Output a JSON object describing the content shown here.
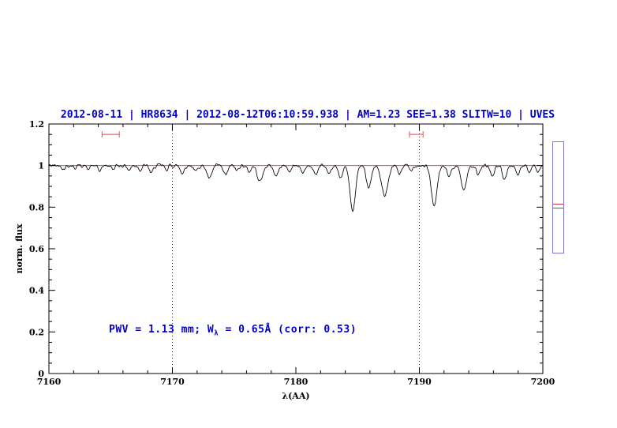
{
  "header": {
    "title": "2012-08-11 | HR8634 | 2012-08-12T06:10:59.938 | AM=1.23  SEE=1.38  SLITW=10 | UVES",
    "color": "#0000cc"
  },
  "annotation": {
    "prefix": "PWV  =  1.13  mm;  W",
    "sub": "λ",
    "suffix": "  =  0.65Å  (corr: 0.53)",
    "color": "#0000cc"
  },
  "slit_panel": {
    "border_color": "#7777cc",
    "marker_color": "#cc3333"
  },
  "chart_data": {
    "type": "line",
    "title": "",
    "xlabel": "λ(AA)",
    "ylabel": "norm. flux",
    "xlim": [
      7160,
      7200
    ],
    "ylim": [
      0,
      1.2
    ],
    "x_major_ticks": [
      7160,
      7170,
      7180,
      7190,
      7200
    ],
    "x_minor_step": 2,
    "y_major_ticks": [
      0,
      0.2,
      0.4,
      0.6,
      0.8,
      1,
      1.2
    ],
    "y_minor_step": 0.05,
    "grid": false,
    "legend": "none",
    "line_color": "#000000",
    "continuum_level": 1.0,
    "continuum_color": "#cc3333",
    "noise_sigma": 0.006,
    "samples": 900,
    "vlines": {
      "x": [
        7170,
        7190
      ],
      "style": "dotted",
      "color": "#333333"
    },
    "markers": [
      {
        "x1": 7164.3,
        "x2": 7165.7,
        "y": 1.15,
        "color": "#d95555"
      },
      {
        "x1": 7189.2,
        "x2": 7190.3,
        "y": 1.15,
        "color": "#d95555"
      }
    ],
    "absorption_lines": [
      [
        7161.2,
        0.015,
        0.12
      ],
      [
        7162.1,
        0.012,
        0.1
      ],
      [
        7163.2,
        0.02,
        0.12
      ],
      [
        7164.1,
        0.025,
        0.15
      ],
      [
        7165.2,
        0.018,
        0.12
      ],
      [
        7166.5,
        0.022,
        0.13
      ],
      [
        7167.4,
        0.02,
        0.12
      ],
      [
        7168.3,
        0.035,
        0.16
      ],
      [
        7169.5,
        0.02,
        0.12
      ],
      [
        7170.8,
        0.035,
        0.16
      ],
      [
        7171.9,
        0.03,
        0.14
      ],
      [
        7173.0,
        0.065,
        0.2
      ],
      [
        7174.3,
        0.045,
        0.18
      ],
      [
        7175.2,
        0.025,
        0.12
      ],
      [
        7176.2,
        0.03,
        0.15
      ],
      [
        7177.1,
        0.075,
        0.22
      ],
      [
        7178.4,
        0.05,
        0.18
      ],
      [
        7179.5,
        0.03,
        0.14
      ],
      [
        7180.6,
        0.035,
        0.15
      ],
      [
        7181.6,
        0.045,
        0.16
      ],
      [
        7182.7,
        0.05,
        0.16
      ],
      [
        7183.6,
        0.055,
        0.18
      ],
      [
        7184.6,
        0.22,
        0.22
      ],
      [
        7185.9,
        0.1,
        0.2
      ],
      [
        7187.2,
        0.15,
        0.26
      ],
      [
        7188.4,
        0.04,
        0.15
      ],
      [
        7189.3,
        0.025,
        0.12
      ],
      [
        7191.2,
        0.19,
        0.24
      ],
      [
        7192.4,
        0.055,
        0.16
      ],
      [
        7193.6,
        0.115,
        0.22
      ],
      [
        7194.8,
        0.045,
        0.16
      ],
      [
        7195.9,
        0.05,
        0.16
      ],
      [
        7196.9,
        0.065,
        0.18
      ],
      [
        7198.0,
        0.045,
        0.16
      ],
      [
        7198.9,
        0.035,
        0.14
      ],
      [
        7199.6,
        0.025,
        0.12
      ]
    ]
  }
}
